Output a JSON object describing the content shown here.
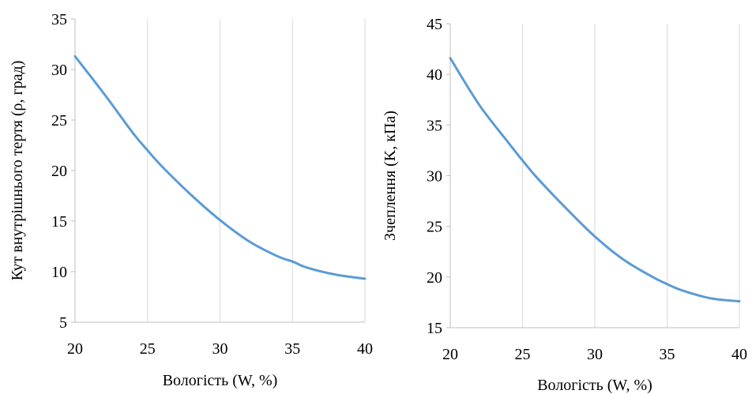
{
  "chart_data": [
    {
      "type": "line",
      "title": "",
      "xlabel": "Вологість  (W, %)",
      "ylabel": "Кут внутрішнього  тертя (ρ, град)",
      "xlim": [
        20,
        40
      ],
      "ylim": [
        5,
        35
      ],
      "x_ticks": [
        "20",
        "25",
        "30",
        "35",
        "40"
      ],
      "y_ticks": [
        "5",
        "10",
        "15",
        "20",
        "25",
        "30",
        "35"
      ],
      "grid": "vertical",
      "legend": "none",
      "color": "#5b9bd5",
      "series": [
        {
          "x": [
            20,
            22,
            24,
            25,
            26,
            28,
            30,
            32,
            34,
            35,
            36,
            38,
            40
          ],
          "values": [
            31.3,
            27.6,
            23.7,
            22.0,
            20.4,
            17.6,
            15.1,
            13.0,
            11.5,
            11.0,
            10.4,
            9.7,
            9.3
          ]
        }
      ]
    },
    {
      "type": "line",
      "title": "",
      "xlabel": "Вологість  (W, %)",
      "ylabel": "Зчеплення (K, кПа)",
      "xlim": [
        20,
        40
      ],
      "ylim": [
        15,
        45
      ],
      "x_ticks": [
        "20",
        "25",
        "30",
        "35",
        "40"
      ],
      "y_ticks": [
        "15",
        "20",
        "25",
        "30",
        "35",
        "40",
        "45"
      ],
      "grid": "vertical",
      "legend": "none",
      "color": "#5b9bd5",
      "series": [
        {
          "x": [
            20,
            22,
            24,
            25,
            26,
            28,
            30,
            32,
            34,
            35,
            36,
            38,
            40
          ],
          "values": [
            41.6,
            37.0,
            33.3,
            31.5,
            29.8,
            26.8,
            24.0,
            21.7,
            20.0,
            19.3,
            18.7,
            17.9,
            17.6
          ]
        }
      ]
    }
  ]
}
